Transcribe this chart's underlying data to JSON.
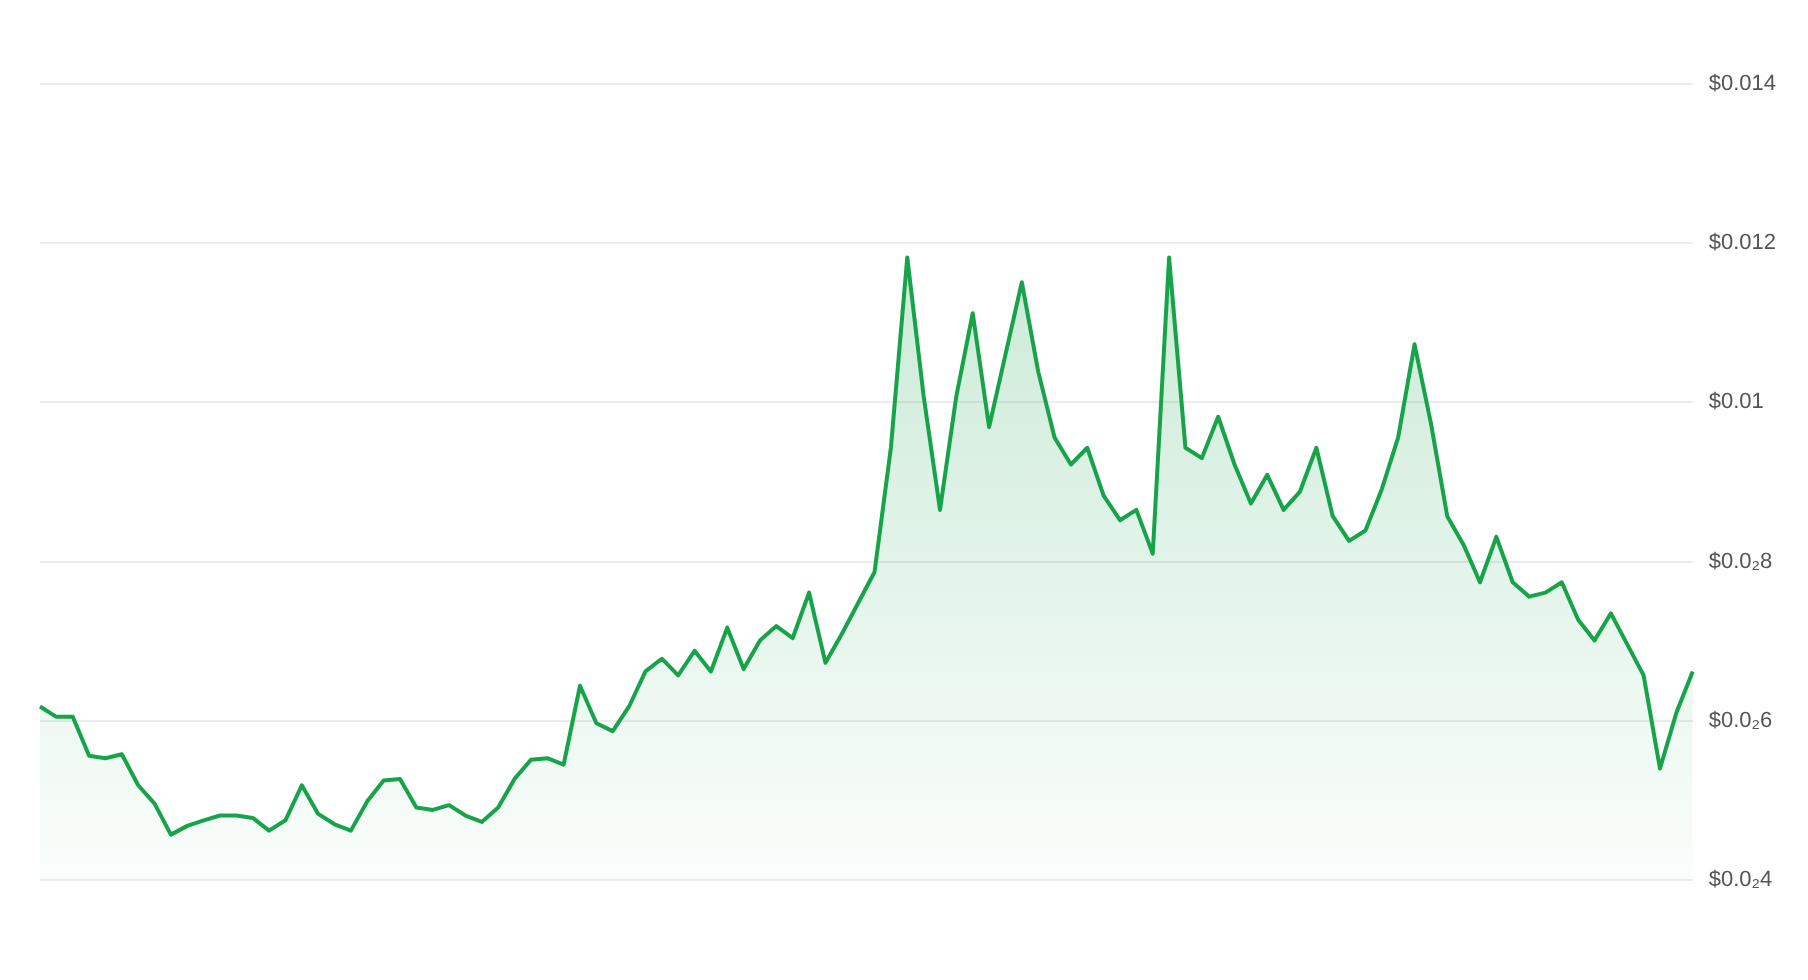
{
  "chart_data": {
    "type": "area",
    "categories": [
      null,
      null,
      null,
      null,
      null,
      null,
      null,
      null,
      null,
      null,
      null,
      null,
      null,
      null,
      null,
      null,
      null,
      null,
      null,
      null,
      null,
      null,
      null,
      null,
      null,
      null,
      null,
      null,
      null,
      null,
      null,
      null,
      null,
      null,
      null,
      null,
      null,
      null,
      null,
      null,
      null,
      null,
      null,
      null,
      null,
      null,
      null,
      null,
      null,
      null,
      null,
      null,
      null,
      null,
      null,
      null,
      null,
      null,
      null,
      null,
      null,
      null,
      null,
      null,
      null,
      null,
      null,
      null,
      null,
      null,
      null,
      null,
      null,
      null,
      null,
      null,
      null,
      null,
      null,
      null,
      null,
      null,
      null,
      null,
      null,
      null,
      null,
      null,
      null,
      null,
      null,
      null,
      null,
      null,
      null,
      null,
      null,
      null,
      null,
      null,
      null,
      null
    ],
    "series": [
      {
        "color": "#16a34a",
        "values": [
          0.00618,
          0.00605,
          0.00605,
          0.00556,
          0.00553,
          0.00558,
          0.00519,
          0.00496,
          0.00457,
          0.00468,
          0.00475,
          0.00481,
          0.00481,
          0.00478,
          0.00462,
          0.00475,
          0.00519,
          0.00483,
          0.0047,
          0.00462,
          0.00499,
          0.00525,
          0.00527,
          0.00491,
          0.00488,
          0.00494,
          0.00481,
          0.00473,
          0.00491,
          0.00527,
          0.00551,
          0.00553,
          0.00545,
          0.00644,
          0.00597,
          0.00587,
          0.00618,
          0.00662,
          0.00678,
          0.00657,
          0.00688,
          0.00662,
          0.00717,
          0.00665,
          0.00701,
          0.00719,
          0.00704,
          0.00761,
          0.00673,
          0.00709,
          0.00748,
          0.00787,
          0.00943,
          0.01182,
          0.01008,
          0.00865,
          0.01008,
          0.01112,
          0.00969,
          0.0106,
          0.01151,
          0.01039,
          0.00956,
          0.00922,
          0.00943,
          0.00883,
          0.00852,
          0.00865,
          0.0081,
          0.01182,
          0.00943,
          0.0093,
          0.00982,
          0.00922,
          0.00873,
          0.00909,
          0.00865,
          0.00888,
          0.00943,
          0.00857,
          0.00826,
          0.00839,
          0.00891,
          0.00956,
          0.01073,
          0.00974,
          0.00857,
          0.00821,
          0.00774,
          0.00831,
          0.00774,
          0.00756,
          0.00761,
          0.00774,
          0.00727,
          0.00701,
          0.00735,
          0.00696,
          0.00657,
          0.0054,
          0.0061,
          0.00662
        ]
      }
    ],
    "ylim": [
      0.004,
      0.014
    ],
    "yticks": [
      {
        "value": 0.004,
        "label": "$0.0₂4"
      },
      {
        "value": 0.006,
        "label": "$0.0₂6"
      },
      {
        "value": 0.008,
        "label": "$0.0₂8"
      },
      {
        "value": 0.01,
        "label": "$0.01"
      },
      {
        "value": 0.012,
        "label": "$0.012"
      },
      {
        "value": 0.014,
        "label": "$0.014"
      }
    ],
    "grid": "y",
    "legend": false,
    "tick_labels": "y",
    "marker": "none",
    "line_style": "solid"
  }
}
